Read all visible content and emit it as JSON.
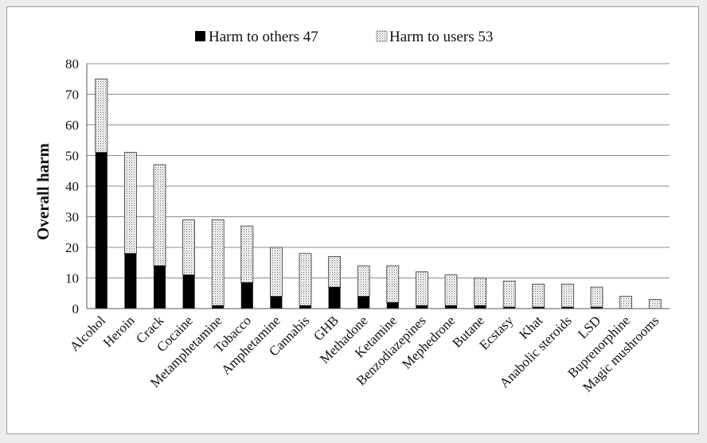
{
  "chart_data": {
    "type": "bar",
    "stacked": true,
    "title": "",
    "xlabel": "",
    "ylabel": "Overall harm",
    "ylim": [
      0,
      80
    ],
    "yticks": [
      0,
      10,
      20,
      30,
      40,
      50,
      60,
      70,
      80
    ],
    "grid": true,
    "legend_position": "top",
    "categories": [
      "Alcohol",
      "Heroin",
      "Crack",
      "Cocaine",
      "Metamphetamine",
      "Tobacco",
      "Amphetamine",
      "Cannabis",
      "GHB",
      "Methadone",
      "Ketamine",
      "Benzodiazepines",
      "Mephedrone",
      "Butane",
      "Ecstasy",
      "Khat",
      "Anabolic steroids",
      "LSD",
      "Buprenorphine",
      "Magic mushrooms"
    ],
    "series": [
      {
        "name": "Harm to others 47",
        "color": "#000000",
        "values": [
          51,
          18,
          14,
          11,
          1,
          8.5,
          4,
          1,
          7,
          4,
          2,
          1,
          1,
          1,
          0.5,
          0.5,
          0.5,
          0.5,
          0,
          0
        ]
      },
      {
        "name": "Harm to users 53",
        "pattern": "dotted",
        "color": "#d9d9d9",
        "values": [
          24,
          33,
          33,
          18,
          28,
          18.5,
          16,
          17,
          10,
          10,
          12,
          11,
          10,
          9,
          8.5,
          7.5,
          7.5,
          6.5,
          4,
          3
        ]
      }
    ]
  }
}
